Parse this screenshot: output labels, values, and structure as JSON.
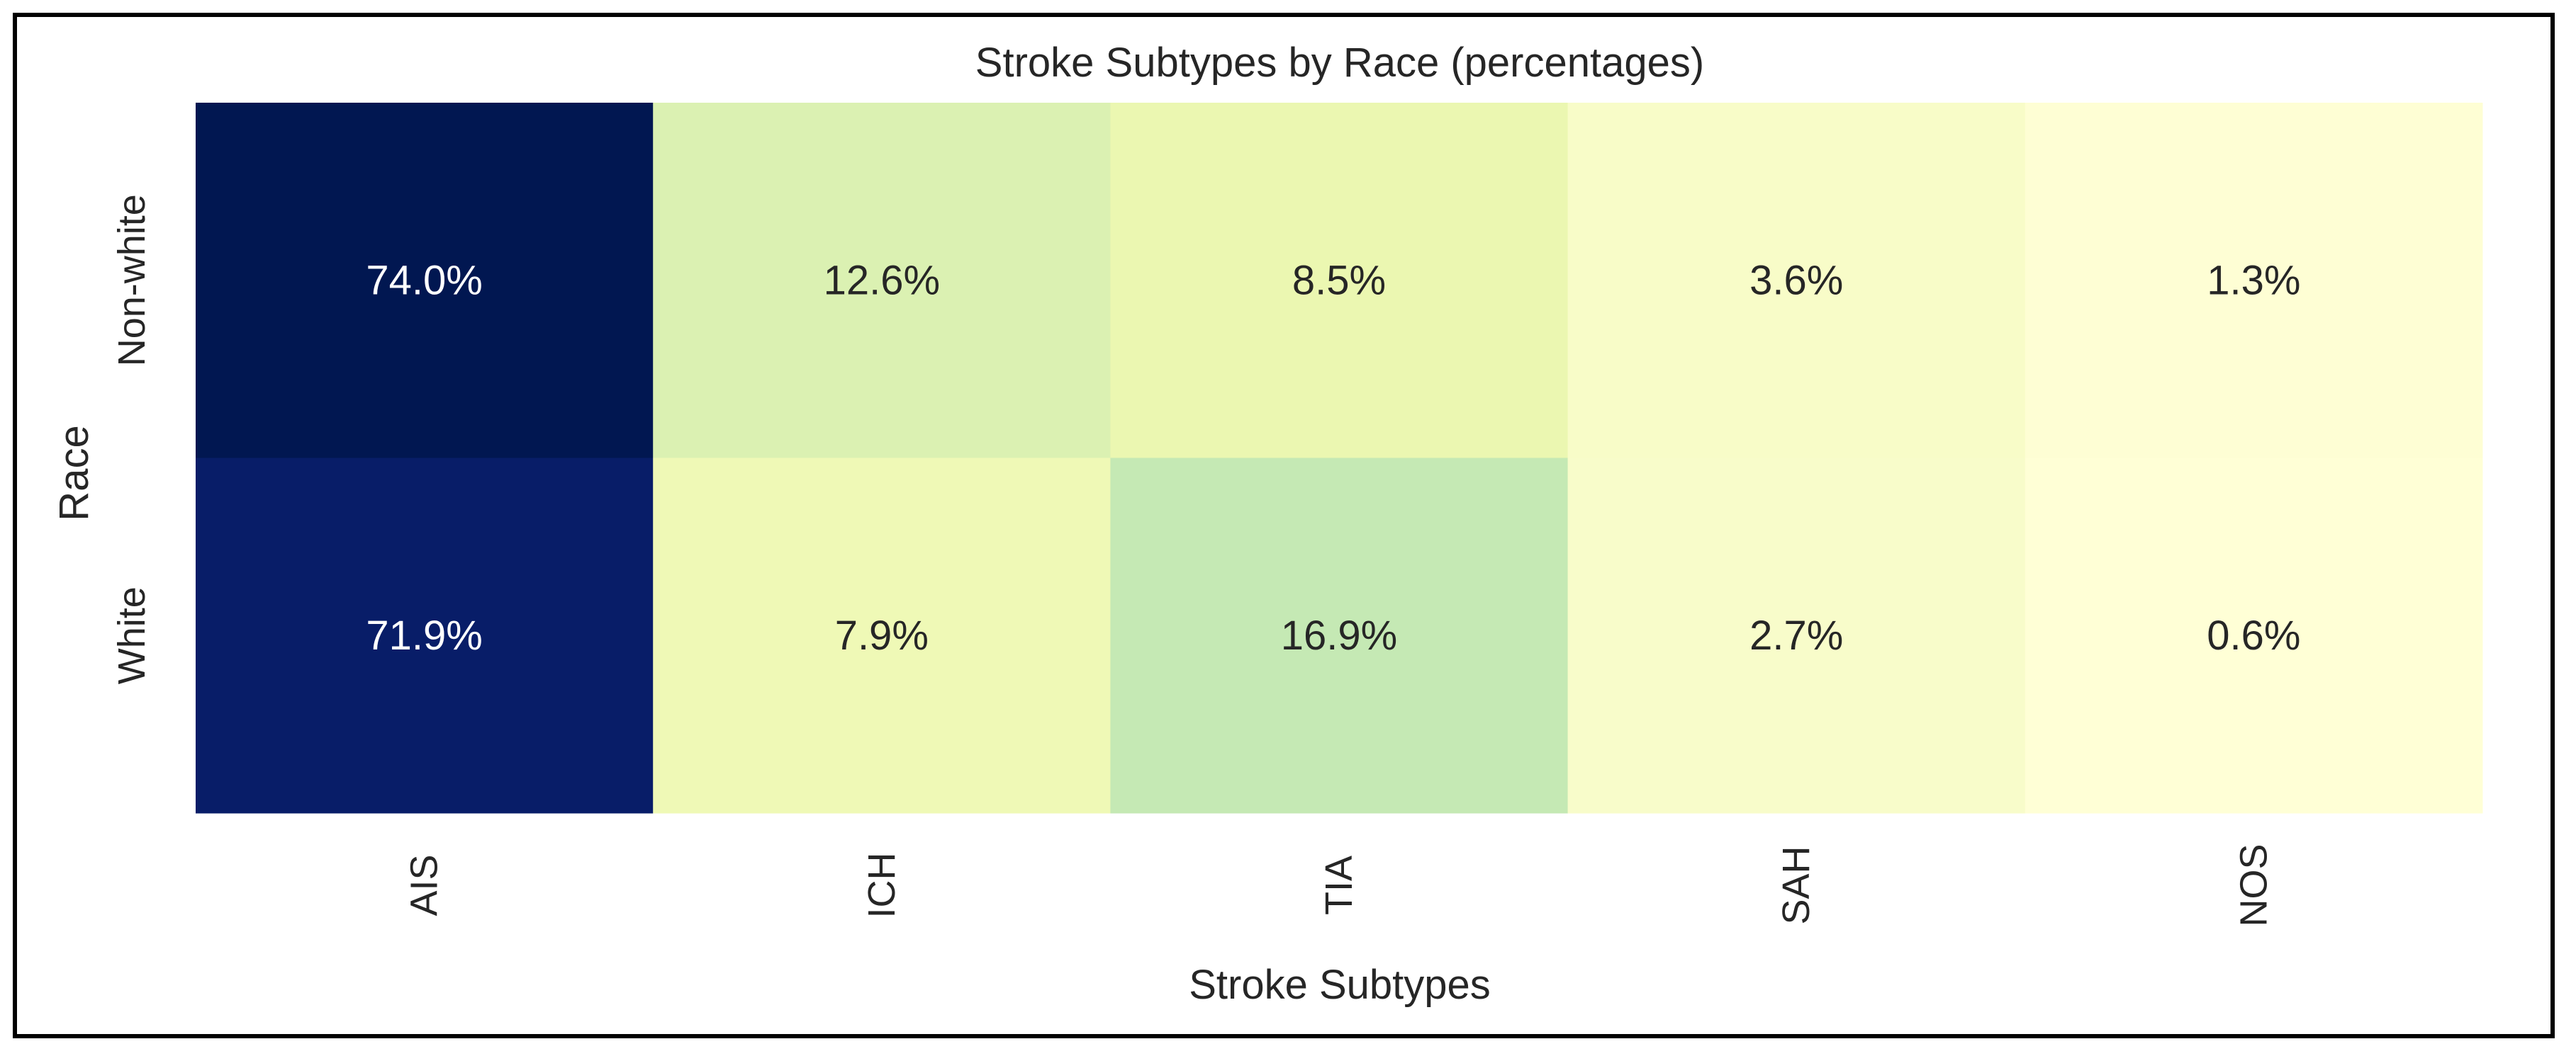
{
  "chart_data": {
    "type": "heatmap",
    "title": "Stroke Subtypes by Race (percentages)",
    "xlabel": "Stroke Subtypes",
    "ylabel": "Race",
    "x_categories": [
      "AIS",
      "ICH",
      "TIA",
      "SAH",
      "NOS"
    ],
    "y_categories": [
      "Non-white",
      "White"
    ],
    "values": [
      [
        74.0,
        12.6,
        8.5,
        3.6,
        1.3
      ],
      [
        71.9,
        7.9,
        16.9,
        2.7,
        0.6
      ]
    ],
    "value_labels": [
      [
        "74.0%",
        "12.6%",
        "8.5%",
        "3.6%",
        "1.3%"
      ],
      [
        "71.9%",
        "7.9%",
        "16.9%",
        "2.7%",
        "0.6%"
      ]
    ],
    "colormap": "YlGnBu",
    "colorbar": false,
    "grid": false,
    "cell_colors": [
      [
        "#011751",
        "#dbf1b2",
        "#ebf7b1",
        "#f8fcc8",
        "#fefed4"
      ],
      [
        "#081d68",
        "#eff9b6",
        "#c5e9b4",
        "#f8fcca",
        "#ffffd6"
      ]
    ],
    "text_colors": {
      "dark_cell": "#ffffff",
      "light_cell": "#262626"
    }
  }
}
